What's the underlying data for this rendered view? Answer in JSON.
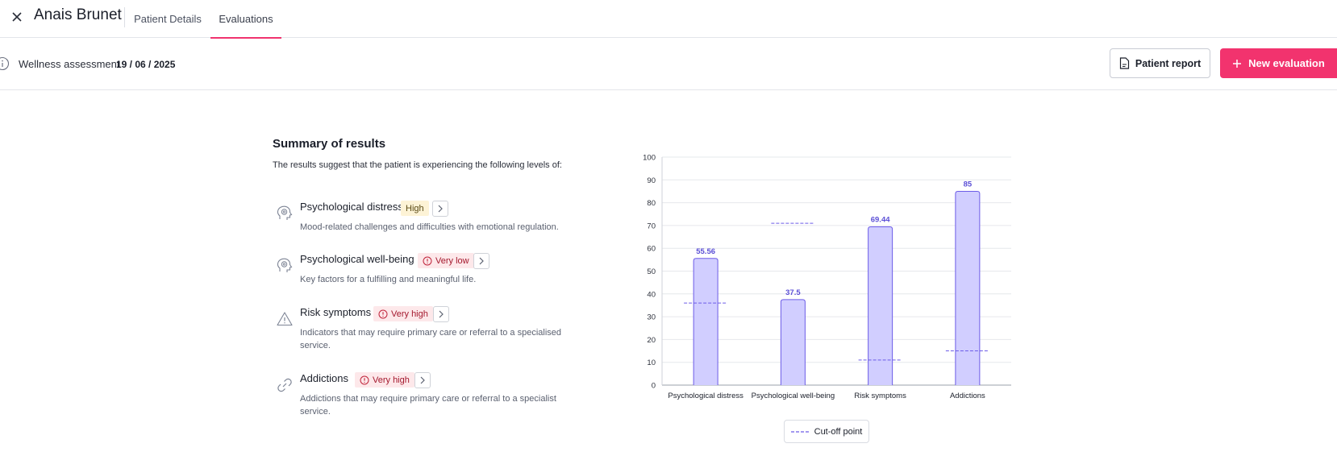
{
  "header": {
    "patient_name": "Anais Brunet",
    "tabs": [
      {
        "label": "Patient Details"
      },
      {
        "label": "Evaluations"
      }
    ]
  },
  "subheader": {
    "assessment_label": "Wellness assessment",
    "assessment_date": "19 / 06 / 2025",
    "report_button": "Patient report",
    "new_button": "New evaluation"
  },
  "summary": {
    "title": "Summary of results",
    "subtitle": "The results suggest that the patient is experiencing the following levels of:",
    "items": [
      {
        "title": "Psychological distress",
        "badge": "High",
        "level": "high",
        "icon": "head-icon",
        "description": "Mood-related challenges and difficulties with emotional regulation."
      },
      {
        "title": "Psychological well-being",
        "badge": "Very low",
        "level": "alert",
        "icon": "head-icon",
        "description": "Key factors for a fulfilling and meaningful life."
      },
      {
        "title": "Risk symptoms",
        "badge": "Very high",
        "level": "alert",
        "icon": "warning-icon",
        "description": "Indicators that may require primary care or referral to a specialised service."
      },
      {
        "title": "Addictions",
        "badge": "Very high",
        "level": "alert",
        "icon": "link-icon",
        "description": "Addictions that may require primary care or referral to a specialist service."
      }
    ]
  },
  "chart_data": {
    "type": "bar",
    "categories": [
      "Psychological distress",
      "Psychological well-being",
      "Risk symptoms",
      "Addictions"
    ],
    "values": [
      55.56,
      37.5,
      69.44,
      85
    ],
    "value_labels": [
      "55.56",
      "37.5",
      "69.44",
      "85"
    ],
    "cutoffs": [
      36,
      71,
      11,
      15
    ],
    "ylim": [
      0,
      100
    ],
    "yticks": [
      "0",
      "10",
      "20",
      "30",
      "40",
      "50",
      "60",
      "70",
      "80",
      "90",
      "100"
    ],
    "grid": true,
    "legend": {
      "label": "Cut-off point",
      "placement": "bottom"
    },
    "bar_color": "#d1ceff",
    "bar_border": "#6c5ce7",
    "label_color": "#5b4fd6",
    "accent": "#f2336e"
  }
}
